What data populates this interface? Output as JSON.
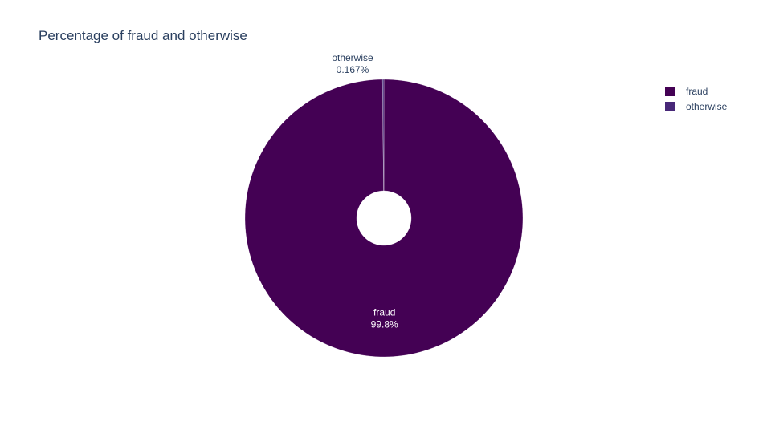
{
  "chart_data": {
    "type": "pie",
    "title": "Percentage of fraud and otherwise",
    "hole": true,
    "legend_position": "top-right",
    "slices": [
      {
        "label": "fraud",
        "value": 99.833,
        "display": "99.8%",
        "color": "#440154",
        "label_color": "#ffffff"
      },
      {
        "label": "otherwise",
        "value": 0.167,
        "display": "0.167%",
        "color": "#482878",
        "label_color": "#2a3f5f"
      }
    ],
    "legend": [
      "fraud",
      "otherwise"
    ]
  }
}
